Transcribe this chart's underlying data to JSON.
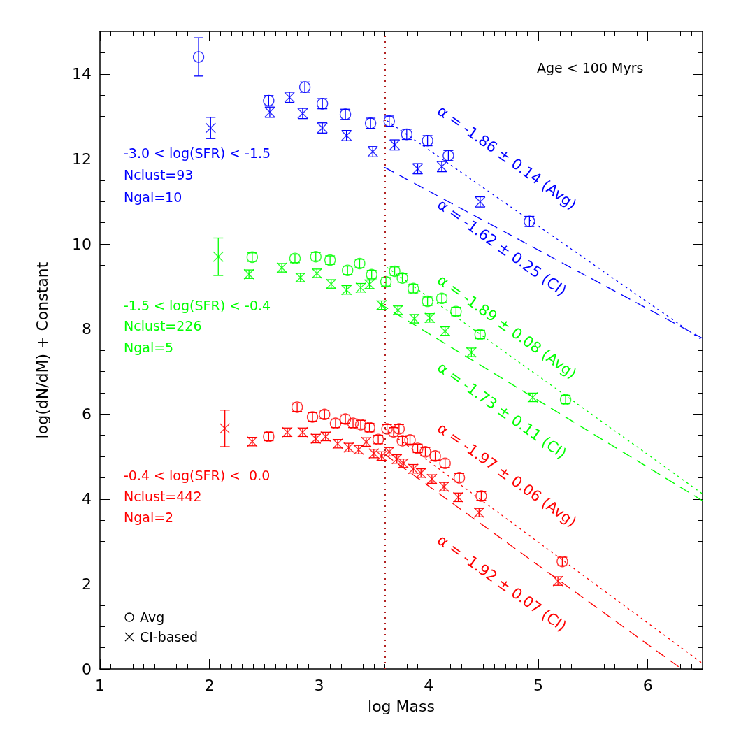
{
  "chart_data": {
    "type": "scatter",
    "xlabel": "log Mass",
    "ylabel": "log(dN/dM) + Constant",
    "xlim": [
      1,
      6.5
    ],
    "xticks": [
      1,
      2,
      3,
      4,
      5,
      6
    ],
    "ylim": [
      0,
      15
    ],
    "yticks": [
      0,
      2,
      4,
      6,
      8,
      10,
      12,
      14
    ],
    "series": [
      {
        "color": "#0000ff",
        "marker": "circle",
        "x": [
          1.9,
          2.54,
          2.87,
          3.03,
          3.24,
          3.47,
          3.64,
          3.8,
          3.99,
          4.18,
          4.92
        ],
        "values": [
          14.4,
          13.37,
          13.69,
          13.3,
          13.05,
          12.84,
          12.89,
          12.58,
          12.43,
          12.08,
          10.53
        ],
        "errors": [
          0.45,
          0.12,
          0.12,
          0.12,
          0.12,
          0.12,
          0.12,
          0.12,
          0.12,
          0.12,
          0.12
        ]
      },
      {
        "color": "#0000ff",
        "marker": "cross",
        "x": [
          2.01,
          2.55,
          2.73,
          2.85,
          3.03,
          3.25,
          3.49,
          3.69,
          3.9,
          4.12,
          4.47
        ],
        "values": [
          12.73,
          13.1,
          13.45,
          13.07,
          12.73,
          12.55,
          12.17,
          12.33,
          11.77,
          11.82,
          10.99
        ],
        "errors": [
          0.25,
          0.12,
          0.12,
          0.12,
          0.12,
          0.12,
          0.12,
          0.12,
          0.12,
          0.12,
          0.12
        ]
      },
      {
        "color": "#00ff00",
        "marker": "circle",
        "x": [
          2.39,
          2.78,
          2.97,
          3.1,
          3.26,
          3.37,
          3.48,
          3.61,
          3.69,
          3.76,
          3.86,
          3.99,
          4.12,
          4.25,
          4.47,
          5.25
        ],
        "values": [
          9.69,
          9.66,
          9.7,
          9.62,
          9.38,
          9.54,
          9.28,
          9.11,
          9.36,
          9.2,
          8.95,
          8.65,
          8.72,
          8.41,
          7.87,
          6.34
        ],
        "errors": [
          0.1,
          0.1,
          0.1,
          0.1,
          0.1,
          0.1,
          0.1,
          0.1,
          0.1,
          0.1,
          0.1,
          0.1,
          0.1,
          0.1,
          0.1,
          0.1
        ]
      },
      {
        "color": "#00ff00",
        "marker": "cross",
        "x": [
          2.08,
          2.36,
          2.66,
          2.83,
          2.98,
          3.11,
          3.25,
          3.38,
          3.46,
          3.57,
          3.72,
          3.87,
          4.01,
          4.15,
          4.39,
          4.95
        ],
        "values": [
          9.7,
          9.29,
          9.44,
          9.21,
          9.31,
          9.06,
          8.92,
          8.97,
          9.05,
          8.56,
          8.44,
          8.24,
          8.26,
          7.95,
          7.45,
          6.39
        ],
        "errors": [
          0.44,
          0.1,
          0.1,
          0.1,
          0.1,
          0.1,
          0.1,
          0.1,
          0.1,
          0.1,
          0.1,
          0.1,
          0.1,
          0.1,
          0.1,
          0.1
        ]
      },
      {
        "color": "#ff0000",
        "marker": "circle",
        "x": [
          2.54,
          2.8,
          2.94,
          3.05,
          3.15,
          3.24,
          3.31,
          3.38,
          3.46,
          3.54,
          3.62,
          3.68,
          3.73,
          3.76,
          3.83,
          3.9,
          3.97,
          4.06,
          4.15,
          4.28,
          4.48,
          5.22
        ],
        "values": [
          5.47,
          6.16,
          5.93,
          5.99,
          5.78,
          5.88,
          5.78,
          5.75,
          5.68,
          5.4,
          5.65,
          5.58,
          5.65,
          5.37,
          5.39,
          5.19,
          5.11,
          5.01,
          4.84,
          4.5,
          4.07,
          2.53
        ],
        "errors": [
          0.1,
          0.1,
          0.1,
          0.1,
          0.1,
          0.1,
          0.1,
          0.1,
          0.1,
          0.1,
          0.1,
          0.1,
          0.1,
          0.1,
          0.1,
          0.1,
          0.1,
          0.1,
          0.1,
          0.1,
          0.1,
          0.1
        ]
      },
      {
        "color": "#ff0000",
        "marker": "cross",
        "x": [
          2.14,
          2.39,
          2.71,
          2.85,
          2.97,
          3.06,
          3.17,
          3.27,
          3.36,
          3.43,
          3.5,
          3.57,
          3.64,
          3.71,
          3.77,
          3.86,
          3.93,
          4.03,
          4.14,
          4.27,
          4.46,
          5.18
        ],
        "values": [
          5.66,
          5.35,
          5.57,
          5.57,
          5.42,
          5.47,
          5.3,
          5.21,
          5.16,
          5.34,
          5.07,
          5.01,
          5.11,
          4.94,
          4.84,
          4.71,
          4.61,
          4.47,
          4.29,
          4.04,
          3.68,
          2.07
        ],
        "errors": [
          0.43,
          0.1,
          0.1,
          0.1,
          0.1,
          0.1,
          0.1,
          0.1,
          0.1,
          0.1,
          0.1,
          0.1,
          0.1,
          0.1,
          0.1,
          0.1,
          0.1,
          0.1,
          0.1,
          0.1,
          0.1,
          0.1
        ]
      },
      {
        "type": "line",
        "color": "#0000ff",
        "marker": "none",
        "line_style": "dotted",
        "x": [
          3.62,
          6.5
        ],
        "values": [
          12.9,
          7.73
        ]
      },
      {
        "type": "line",
        "color": "#0000ff",
        "marker": "none",
        "line_style": "dashed",
        "x": [
          3.6,
          6.5
        ],
        "values": [
          11.8,
          7.78
        ]
      },
      {
        "type": "line",
        "color": "#00ff00",
        "marker": "none",
        "line_style": "dotted",
        "x": [
          3.62,
          6.5
        ],
        "values": [
          9.45,
          4.12
        ]
      },
      {
        "type": "line",
        "color": "#00ff00",
        "marker": "none",
        "line_style": "dashed",
        "x": [
          3.55,
          6.5
        ],
        "values": [
          8.6,
          3.96
        ]
      },
      {
        "type": "line",
        "color": "#ff0000",
        "marker": "none",
        "line_style": "dotted",
        "x": [
          3.6,
          6.5
        ],
        "values": [
          5.65,
          0.13
        ]
      },
      {
        "type": "line",
        "color": "#ff0000",
        "marker": "none",
        "line_style": "dashed",
        "x": [
          3.6,
          6.31
        ],
        "values": [
          5.05,
          0
        ]
      }
    ],
    "ref_lines": [
      {
        "axis": "x",
        "value": 3.6,
        "color": "#b22222",
        "line_style": "dotted"
      }
    ],
    "annotations": [
      "Age < 100 Myrs",
      "-3.0 < log(SFR) < -1.5",
      "Nclust=93",
      "Ngal=10",
      "-1.5 < log(SFR) < -0.4",
      "Nclust=226",
      "Ngal=5",
      "-0.4 < log(SFR) <  0.0",
      "Nclust=442",
      "Ngal=2",
      "α = -1.86 ± 0.14 (Avg)",
      "α = -1.62 ± 0.25 (CI)",
      "α = -1.89 ± 0.08 (Avg)",
      "α = -1.73 ± 0.11 (CI)",
      "α = -1.97 ± 0.06 (Avg)",
      "α = -1.92 ± 0.07 (CI)",
      "Avg",
      "CI-based"
    ]
  }
}
